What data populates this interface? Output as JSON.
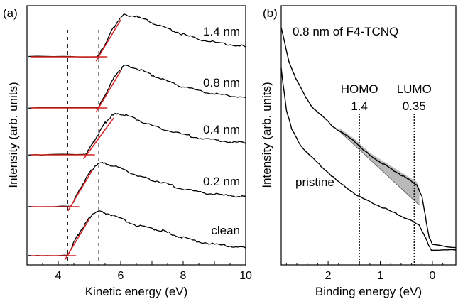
{
  "chart_data": [
    {
      "panel_label": "(a)",
      "type": "line",
      "xlabel": "Kinetic energy (eV)",
      "ylabel": "Intensity (arb. units)",
      "xlim": [
        3,
        10
      ],
      "x_ticks": [
        4,
        6,
        8,
        10
      ],
      "y_ticks_labeled": false,
      "grid": false,
      "vertical_guides_x": [
        4.3,
        5.3
      ],
      "series": [
        {
          "name": "clean",
          "onset_x": 4.3,
          "points": [
            [
              3.05,
              0.0
            ],
            [
              4.2,
              0.0
            ],
            [
              4.3,
              0.0
            ],
            [
              4.5,
              0.3
            ],
            [
              4.7,
              0.58
            ],
            [
              4.9,
              0.8
            ],
            [
              5.1,
              1.0
            ],
            [
              5.3,
              1.06
            ],
            [
              5.6,
              1.0
            ],
            [
              6.0,
              0.88
            ],
            [
              6.5,
              0.72
            ],
            [
              7.0,
              0.64
            ],
            [
              7.3,
              0.6
            ],
            [
              7.6,
              0.52
            ],
            [
              8.0,
              0.42
            ],
            [
              8.5,
              0.33
            ],
            [
              9.0,
              0.26
            ],
            [
              9.5,
              0.22
            ],
            [
              10.0,
              0.19
            ]
          ]
        },
        {
          "name": "0.2 nm",
          "onset_x": 4.4,
          "points": [
            [
              3.05,
              0.0
            ],
            [
              4.3,
              0.0
            ],
            [
              4.4,
              0.0
            ],
            [
              4.6,
              0.28
            ],
            [
              4.8,
              0.56
            ],
            [
              5.0,
              0.8
            ],
            [
              5.2,
              1.0
            ],
            [
              5.45,
              1.04
            ],
            [
              5.8,
              0.98
            ],
            [
              6.2,
              0.86
            ],
            [
              6.6,
              0.72
            ],
            [
              7.0,
              0.64
            ],
            [
              7.4,
              0.56
            ],
            [
              7.8,
              0.46
            ],
            [
              8.3,
              0.37
            ],
            [
              8.8,
              0.31
            ],
            [
              9.3,
              0.26
            ],
            [
              9.8,
              0.24
            ],
            [
              10.0,
              0.23
            ]
          ]
        },
        {
          "name": "0.4 nm",
          "onset_x": 4.9,
          "points": [
            [
              3.05,
              0.0
            ],
            [
              4.8,
              0.0
            ],
            [
              4.9,
              0.02
            ],
            [
              5.1,
              0.25
            ],
            [
              5.3,
              0.52
            ],
            [
              5.5,
              0.76
            ],
            [
              5.7,
              0.93
            ],
            [
              5.9,
              1.0
            ],
            [
              6.2,
              0.94
            ],
            [
              6.6,
              0.82
            ],
            [
              7.0,
              0.7
            ],
            [
              7.5,
              0.58
            ],
            [
              8.0,
              0.48
            ],
            [
              8.5,
              0.4
            ],
            [
              9.0,
              0.34
            ],
            [
              9.5,
              0.3
            ],
            [
              10.0,
              0.27
            ]
          ]
        },
        {
          "name": "0.8 nm",
          "onset_x": 5.3,
          "points": [
            [
              3.05,
              0.0
            ],
            [
              5.2,
              0.0
            ],
            [
              5.3,
              0.02
            ],
            [
              5.5,
              0.3
            ],
            [
              5.7,
              0.6
            ],
            [
              5.9,
              0.86
            ],
            [
              6.1,
              1.0
            ],
            [
              6.4,
              0.98
            ],
            [
              6.8,
              0.86
            ],
            [
              7.2,
              0.72
            ],
            [
              7.6,
              0.6
            ],
            [
              8.0,
              0.5
            ],
            [
              8.5,
              0.4
            ],
            [
              9.0,
              0.33
            ],
            [
              9.5,
              0.28
            ],
            [
              10.0,
              0.25
            ]
          ]
        },
        {
          "name": "1.4 nm",
          "onset_x": 5.3,
          "points": [
            [
              3.05,
              0.0
            ],
            [
              5.2,
              0.0
            ],
            [
              5.3,
              0.02
            ],
            [
              5.5,
              0.3
            ],
            [
              5.7,
              0.6
            ],
            [
              5.9,
              0.86
            ],
            [
              6.1,
              1.0
            ],
            [
              6.4,
              0.98
            ],
            [
              6.8,
              0.88
            ],
            [
              7.2,
              0.76
            ],
            [
              7.6,
              0.64
            ],
            [
              8.0,
              0.53
            ],
            [
              8.5,
              0.42
            ],
            [
              9.0,
              0.34
            ],
            [
              9.5,
              0.28
            ],
            [
              10.0,
              0.24
            ]
          ]
        }
      ]
    },
    {
      "panel_label": "(b)",
      "type": "line",
      "xlabel": "Binding energy (eV)",
      "ylabel": "Intensity (arb. units)",
      "xlim": [
        2.9,
        -0.45
      ],
      "x_ticks": [
        2,
        1,
        0
      ],
      "y_ticks_labeled": false,
      "grid": false,
      "marker_lines": [
        {
          "label": "HOMO",
          "value_label": "1.4",
          "x": 1.4
        },
        {
          "label": "LUMO",
          "value_label": "0.35",
          "x": 0.35
        }
      ],
      "series": [
        {
          "name": "0.8 nm of F4-TCNQ",
          "points": [
            [
              2.9,
              0.92
            ],
            [
              2.75,
              0.78
            ],
            [
              2.6,
              0.7
            ],
            [
              2.45,
              0.64
            ],
            [
              2.3,
              0.59
            ],
            [
              2.1,
              0.55
            ],
            [
              1.9,
              0.51
            ],
            [
              1.7,
              0.48
            ],
            [
              1.5,
              0.45
            ],
            [
              1.35,
              0.42
            ],
            [
              1.2,
              0.39
            ],
            [
              1.05,
              0.37
            ],
            [
              0.9,
              0.35
            ],
            [
              0.75,
              0.33
            ],
            [
              0.6,
              0.31
            ],
            [
              0.45,
              0.29
            ],
            [
              0.3,
              0.27
            ],
            [
              0.2,
              0.22
            ],
            [
              0.12,
              0.12
            ],
            [
              0.06,
              0.05
            ],
            [
              0.0,
              0.02
            ],
            [
              -0.45,
              0.01
            ]
          ]
        },
        {
          "name": "pristine",
          "points": [
            [
              2.9,
              0.75
            ],
            [
              2.8,
              0.58
            ],
            [
              2.7,
              0.5
            ],
            [
              2.55,
              0.44
            ],
            [
              2.4,
              0.4
            ],
            [
              2.2,
              0.36
            ],
            [
              2.0,
              0.32
            ],
            [
              1.8,
              0.28
            ],
            [
              1.6,
              0.25
            ],
            [
              1.4,
              0.22
            ],
            [
              1.2,
              0.2
            ],
            [
              1.0,
              0.18
            ],
            [
              0.8,
              0.16
            ],
            [
              0.6,
              0.14
            ],
            [
              0.4,
              0.12
            ],
            [
              0.25,
              0.1
            ],
            [
              0.15,
              0.06
            ],
            [
              0.08,
              0.02
            ],
            [
              0.02,
              0.0
            ],
            [
              -0.45,
              0.0
            ]
          ]
        }
      ],
      "shaded_region": {
        "x_from": 1.8,
        "x_to": 0.25,
        "between": "0.8 nm of F4-TCNQ and linear background"
      }
    }
  ]
}
